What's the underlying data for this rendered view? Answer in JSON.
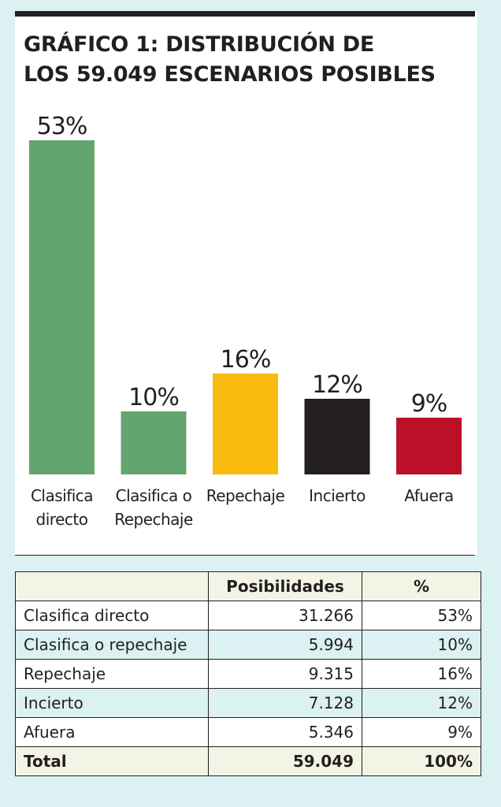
{
  "title_line1": "GRÁFICO 1: DISTRIBUCIÓN DE",
  "title_line2": "LOS 59.049 ESCENARIOS POSIBLES",
  "chart_data": {
    "type": "bar",
    "categories": [
      [
        "Clasifica",
        "directo"
      ],
      [
        "Clasifica o",
        "Repechaje"
      ],
      [
        "Repechaje"
      ],
      [
        "Incierto"
      ],
      [
        "Afuera"
      ]
    ],
    "values": [
      53,
      10,
      16,
      12,
      9
    ],
    "value_labels": [
      "53%",
      "10%",
      "16%",
      "12%",
      "9%"
    ],
    "colors": [
      "#63a56f",
      "#63a56f",
      "#f8bb0e",
      "#231f20",
      "#bc1029"
    ],
    "title": "GRÁFICO 1: DISTRIBUCIÓN DE LOS 59.049 ESCENARIOS POSIBLES",
    "xlabel": "",
    "ylabel": "",
    "ylim": [
      0,
      53
    ],
    "grid": false
  },
  "table": {
    "header": [
      "",
      "Posibilidades",
      "%"
    ],
    "rows": [
      {
        "label": "Clasifica directo",
        "count": "31.266",
        "pct": "53%"
      },
      {
        "label": "Clasifica o repechaje",
        "count": "5.994",
        "pct": "10%"
      },
      {
        "label": "Repechaje",
        "count": "9.315",
        "pct": "16%"
      },
      {
        "label": "Incierto",
        "count": "7.128",
        "pct": "12%"
      },
      {
        "label": "Afuera",
        "count": "5.346",
        "pct": "9%"
      }
    ],
    "total": {
      "label": "Total",
      "count": "59.049",
      "pct": "100%"
    }
  }
}
